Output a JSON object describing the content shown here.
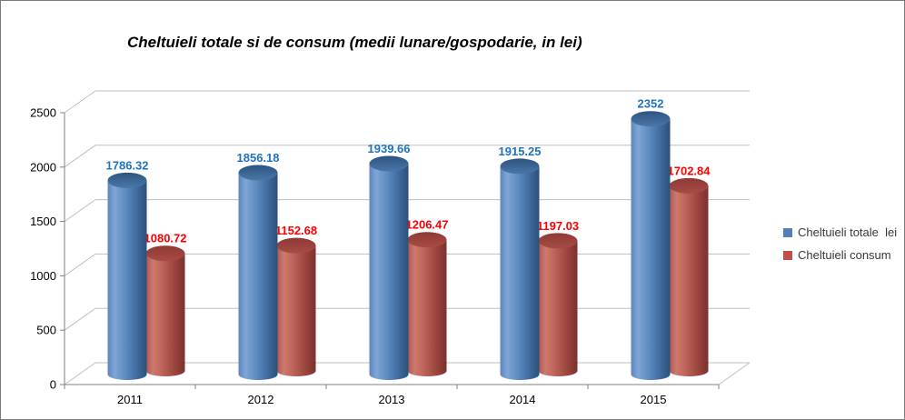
{
  "title": "Cheltuieli totale si de consum (medii lunare/gospodarie, in lei)",
  "chart_data": {
    "type": "bar",
    "style": "3d-cylinder",
    "title": "Cheltuieli totale si de consum (medii lunare/gospodarie, in lei)",
    "categories": [
      "2011",
      "2012",
      "2013",
      "2014",
      "2015"
    ],
    "series": [
      {
        "name": "Cheltuieli totale  lei",
        "values": [
          1786.32,
          1856.18,
          1939.66,
          1915.25,
          2352
        ],
        "labels": [
          "1786.32",
          "1856.18",
          "1939.66",
          "1915.25",
          "2352"
        ],
        "label_color": "#1e73c2",
        "legend_color": "#4f81bd",
        "body_gradient": [
          "#5b87bb",
          "#7fa6d6",
          "#5d8cc0",
          "#3f6ba0",
          "#2b4f79"
        ],
        "top_gradient": [
          "#2d5480",
          "#4a77a8"
        ]
      },
      {
        "name": "Cheltuieli consum",
        "values": [
          1080.72,
          1152.68,
          1206.47,
          1197.03,
          1702.84
        ],
        "labels": [
          "1080.72",
          "1152.68",
          "1206.47",
          "1197.03",
          "1702.84"
        ],
        "label_color": "#fe0000",
        "legend_color": "#c0504d",
        "body_gradient": [
          "#ad5650",
          "#cd7a6e",
          "#bb6058",
          "#9a433e",
          "#7c302c"
        ],
        "top_gradient": [
          "#8f3935",
          "#a84b46"
        ]
      }
    ],
    "xlabel": "",
    "ylabel": "",
    "ylim": [
      0,
      2500
    ],
    "yticks": [
      0,
      500,
      1000,
      1500,
      2000,
      2500
    ],
    "grid": true,
    "legend_position": "right",
    "axis_color": "#808080",
    "grid_color": "#bfbfbf",
    "tick_label_color": "#000000"
  },
  "legend": {
    "items": [
      {
        "label": "Cheltuieli totale  lei"
      },
      {
        "label": "Cheltuieli consum"
      }
    ]
  }
}
